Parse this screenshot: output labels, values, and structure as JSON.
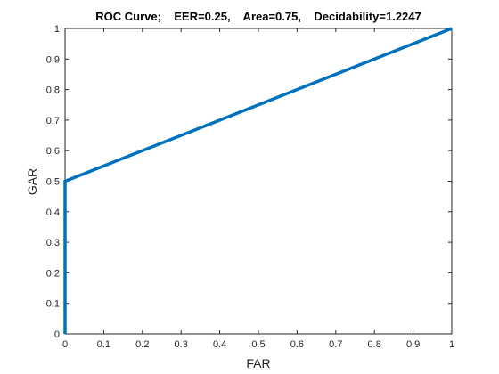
{
  "chart_data": {
    "type": "line",
    "title": "ROC Curve;    EER=0.25,    Area=0.75,    Decidability=1.2247",
    "xlabel": "FAR",
    "ylabel": "GAR",
    "xlim": [
      0,
      1
    ],
    "ylim": [
      0,
      1
    ],
    "xticks": [
      0,
      0.1,
      0.2,
      0.3,
      0.4,
      0.5,
      0.6,
      0.7,
      0.8,
      0.9,
      1
    ],
    "yticks": [
      0,
      0.1,
      0.2,
      0.3,
      0.4,
      0.5,
      0.6,
      0.7,
      0.8,
      0.9,
      1
    ],
    "xtick_labels": [
      "0",
      "0.1",
      "0.2",
      "0.3",
      "0.4",
      "0.5",
      "0.6",
      "0.7",
      "0.8",
      "0.9",
      "1"
    ],
    "ytick_labels": [
      "0",
      "0.1",
      "0.2",
      "0.3",
      "0.4",
      "0.5",
      "0.6",
      "0.7",
      "0.8",
      "0.9",
      "1"
    ],
    "grid": false,
    "series": [
      {
        "x": [
          0,
          0,
          1
        ],
        "y": [
          0,
          0.5,
          1
        ],
        "color": "#0072BD"
      }
    ]
  },
  "colors": {
    "axis": "#262626",
    "background": "#ffffff"
  }
}
